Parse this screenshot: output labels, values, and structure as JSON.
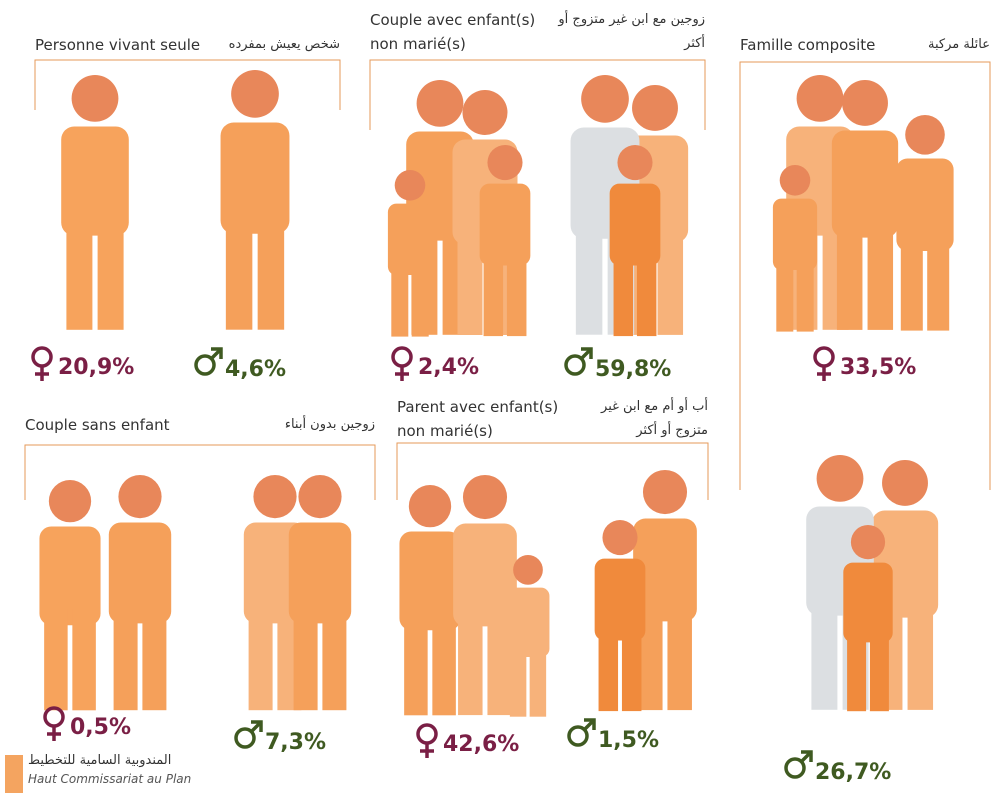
{
  "panels": [
    {
      "title_fr": "Personne vivant seule",
      "title_ar": "شخص يعيش بمفرده",
      "female": "20,9%",
      "male": "4,6%"
    },
    {
      "title_fr": "Couple avec enfant(s) non marié(s)",
      "title_ar": "زوجين مع ابن غير متزوج أو أكثر",
      "female": "2,4%",
      "male": "59,8%"
    },
    {
      "title_fr": "Famille composite",
      "title_ar": "عائلة مركبة",
      "female": "33,5%",
      "male": "26,7%"
    },
    {
      "title_fr": "Couple sans enfant",
      "title_ar": "زوجين بدون أبناء",
      "female": "0,5%",
      "male": "7,3%"
    },
    {
      "title_fr": "Parent avec enfant(s) non marié(s)",
      "title_ar": "أب أو أم مع ابن غير متزوج أو أكثر",
      "female": "42,6%",
      "male": "1,5%"
    }
  ],
  "footer": {
    "ar": "المندوبية السامية للتخطيط",
    "fr": "Haut Commissariat au Plan"
  }
}
